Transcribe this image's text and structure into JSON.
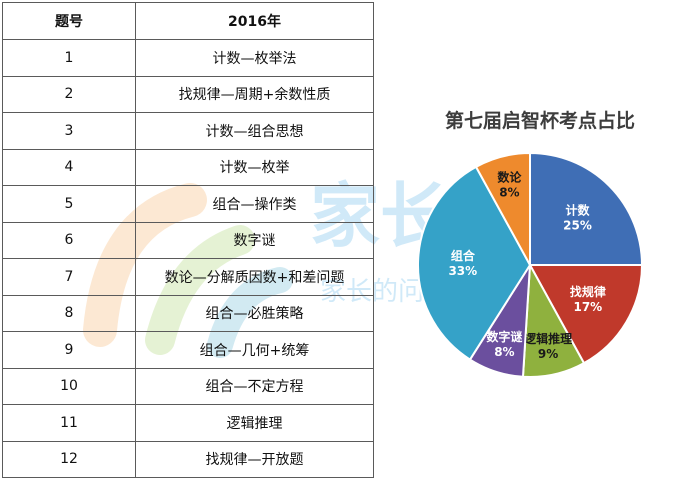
{
  "table": {
    "headers": [
      "题号",
      "2016年"
    ],
    "rows": [
      {
        "no": "1",
        "topic": "计数—枚举法"
      },
      {
        "no": "2",
        "topic": "找规律—周期+余数性质"
      },
      {
        "no": "3",
        "topic": "计数—组合思想"
      },
      {
        "no": "4",
        "topic": "计数—枚举"
      },
      {
        "no": "5",
        "topic": "组合—操作类"
      },
      {
        "no": "6",
        "topic": "数字谜"
      },
      {
        "no": "7",
        "topic": "数论—分解质因数+和差问题"
      },
      {
        "no": "8",
        "topic": "组合—必胜策略"
      },
      {
        "no": "9",
        "topic": "组合—几何+统筹"
      },
      {
        "no": "10",
        "topic": "组合—不定方程"
      },
      {
        "no": "11",
        "topic": "逻辑推理"
      },
      {
        "no": "12",
        "topic": "找规律—开放题"
      }
    ]
  },
  "chart_data": {
    "type": "pie",
    "title": "第七届启智杯考点占比",
    "slices": [
      {
        "label": "计数",
        "value": 25,
        "value_text": "25%",
        "color": "#3f6eb5"
      },
      {
        "label": "找规律",
        "value": 17,
        "value_text": "17%",
        "color": "#c0392b"
      },
      {
        "label": "逻辑推理",
        "value": 9,
        "value_text": "9%",
        "color": "#8fb13e"
      },
      {
        "label": "数字谜",
        "value": 8,
        "value_text": "8%",
        "color": "#6b4f9e"
      },
      {
        "label": "组合",
        "value": 33,
        "value_text": "33%",
        "color": "#35a2c8"
      },
      {
        "label": "数论",
        "value": 8,
        "value_text": "8%",
        "color": "#ee8a2d"
      }
    ],
    "start": "12 o'clock",
    "direction": "clockwise",
    "legend": "none (labels inside slices)"
  },
  "watermark": {
    "text": "家长帮",
    "subtext": "家长的问题@家长帮",
    "color": "#7ec8ec"
  }
}
